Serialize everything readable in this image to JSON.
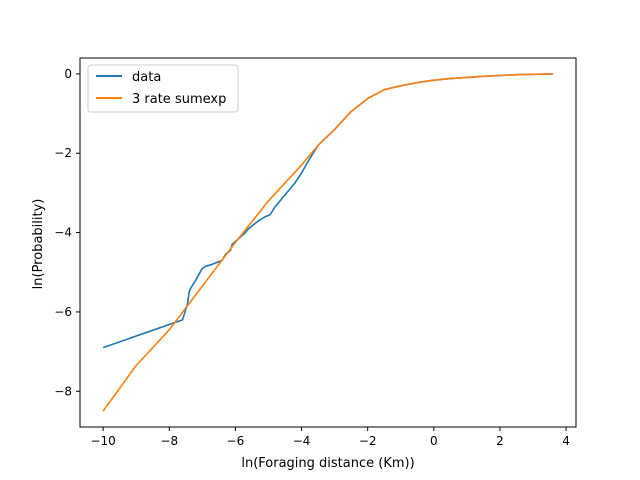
{
  "chart_data": {
    "type": "line",
    "title": "",
    "xlabel": "ln(Foraging distance (Km))",
    "ylabel": "ln(Probability)",
    "xlim": [
      -10.7,
      4.3
    ],
    "ylim": [
      -8.9,
      0.4
    ],
    "xticks": [
      -10,
      -8,
      -6,
      -4,
      -2,
      0,
      2,
      4
    ],
    "yticks": [
      -8,
      -6,
      -4,
      -2,
      0
    ],
    "xtick_labels": [
      "−10",
      "−8",
      "−6",
      "−4",
      "−2",
      "0",
      "2",
      "4"
    ],
    "ytick_labels": [
      "−8",
      "−6",
      "−4",
      "−2",
      "0"
    ],
    "grid": false,
    "legend": {
      "position": "top-left",
      "entries": [
        "data",
        "3 rate sumexp"
      ]
    },
    "series": [
      {
        "name": "data",
        "color": "#1f77b4",
        "x": [
          -10.0,
          -7.6,
          -7.45,
          -7.4,
          -7.35,
          -7.2,
          -7.0,
          -6.9,
          -6.7,
          -6.4,
          -6.3,
          -6.15,
          -6.1,
          -5.9,
          -5.7,
          -5.6,
          -5.3,
          -5.1,
          -4.95,
          -4.8,
          -4.55,
          -4.4,
          -4.2,
          -4.0,
          -3.8,
          -3.5,
          -3.0,
          -2.5,
          -2.0,
          -1.5,
          -1.0,
          -0.5,
          0.0,
          0.5,
          1.0,
          1.5,
          2.0,
          2.5,
          3.0,
          3.6
        ],
        "y": [
          -6.9,
          -6.2,
          -5.8,
          -5.5,
          -5.4,
          -5.2,
          -4.9,
          -4.85,
          -4.8,
          -4.7,
          -4.55,
          -4.45,
          -4.3,
          -4.15,
          -4.0,
          -3.9,
          -3.7,
          -3.6,
          -3.55,
          -3.35,
          -3.1,
          -2.95,
          -2.75,
          -2.5,
          -2.2,
          -1.8,
          -1.4,
          -0.95,
          -0.62,
          -0.4,
          -0.3,
          -0.22,
          -0.16,
          -0.12,
          -0.09,
          -0.06,
          -0.04,
          -0.02,
          -0.01,
          0.0
        ]
      },
      {
        "name": "3 rate sumexp",
        "color": "#ff7f0e",
        "x": [
          -10.0,
          -9.0,
          -8.0,
          -7.0,
          -6.0,
          -5.0,
          -4.0,
          -3.5,
          -3.0,
          -2.5,
          -2.0,
          -1.5,
          -1.0,
          -0.5,
          0.0,
          0.5,
          1.0,
          1.5,
          2.0,
          2.5,
          3.0,
          3.6
        ],
        "y": [
          -8.5,
          -7.35,
          -6.45,
          -5.35,
          -4.25,
          -3.2,
          -2.3,
          -1.8,
          -1.4,
          -0.95,
          -0.62,
          -0.4,
          -0.3,
          -0.22,
          -0.16,
          -0.12,
          -0.09,
          -0.06,
          -0.04,
          -0.02,
          -0.01,
          0.0
        ]
      }
    ]
  }
}
